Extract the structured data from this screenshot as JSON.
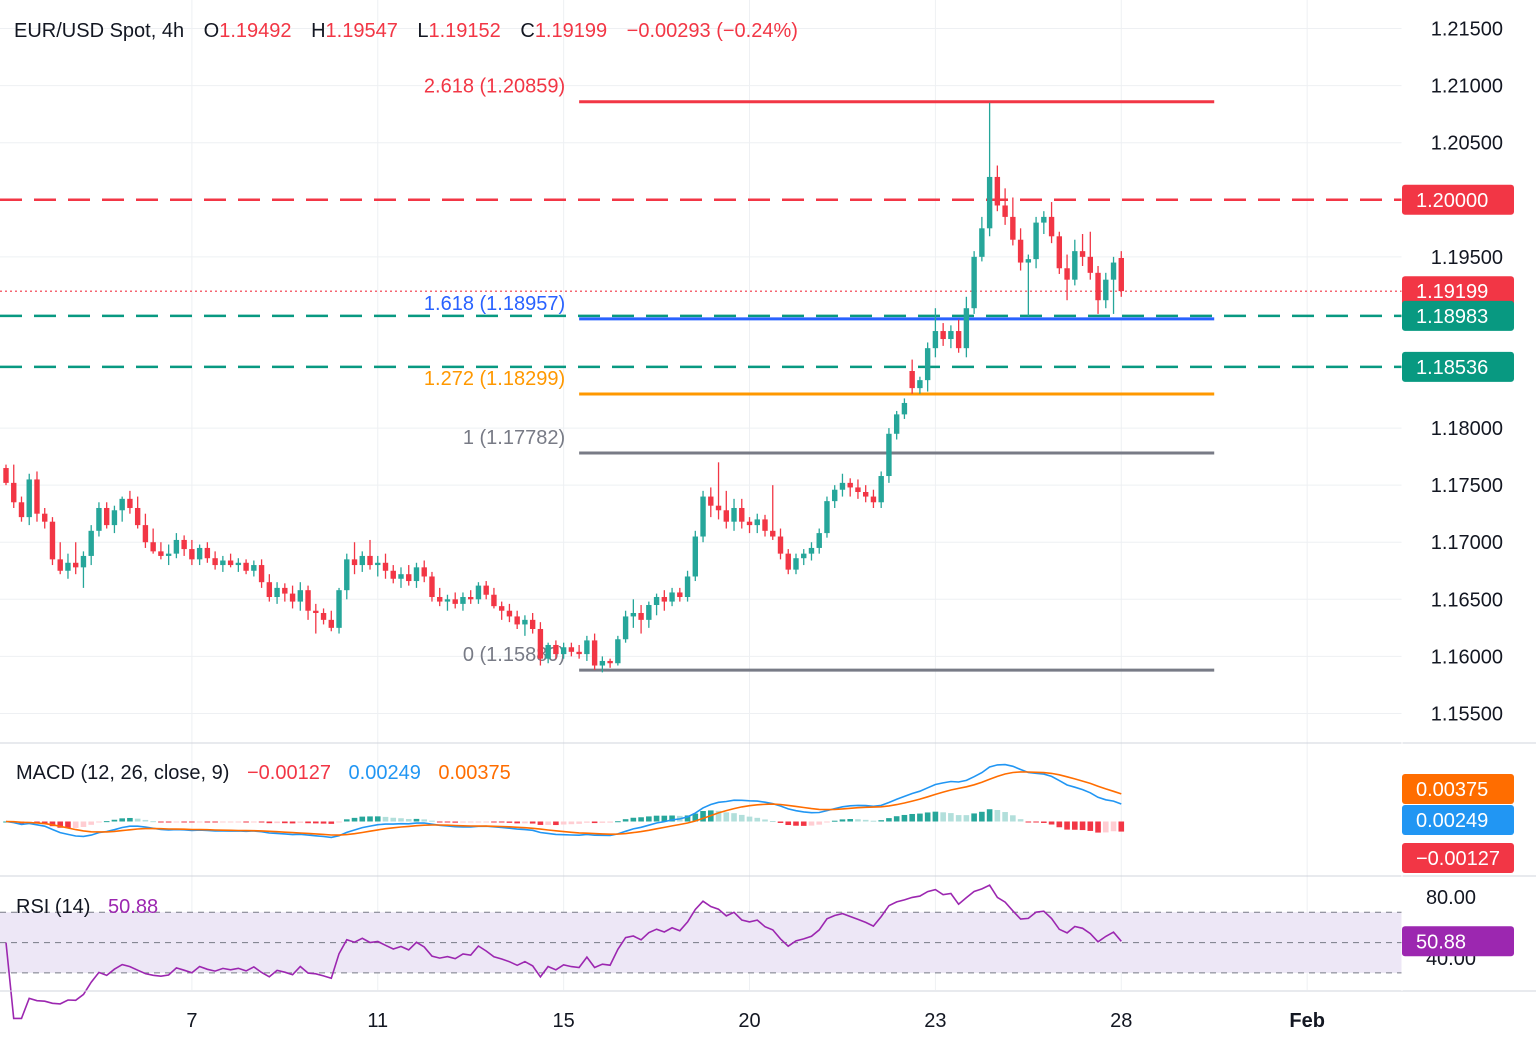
{
  "header": {
    "symbol": "EUR/USD Spot, 4h",
    "open_label": "O",
    "open": "1.19492",
    "high_label": "H",
    "high": "1.19547",
    "low_label": "L",
    "low": "1.19152",
    "close_label": "C",
    "close": "1.19199",
    "change": "−0.00293 (−0.24%)"
  },
  "colors": {
    "up": "#26a69a",
    "down": "#f23645",
    "fib_red": "#f23645",
    "fib_blue": "#2962ff",
    "fib_orange": "#ff9800",
    "fib_gray": "#787b86",
    "macd_line": "#2196f3",
    "signal_line": "#ff6d00",
    "rsi_line": "#9c27b0",
    "rsi_band": "#ede7f6",
    "grid": "#eef0f3",
    "axis_text": "#131722"
  },
  "chart_data": {
    "type": "candlestick",
    "x_tick_labels": [
      "7",
      "11",
      "15",
      "20",
      "23",
      "28",
      "Feb"
    ],
    "x_tick_index": [
      24,
      48,
      72,
      96,
      120,
      144,
      168
    ],
    "price_axis": {
      "ylim": [
        1.1525,
        1.2175
      ],
      "ticks": [
        "1.21500",
        "1.21000",
        "1.20500",
        "1.19500",
        "1.18000",
        "1.17500",
        "1.17000",
        "1.16500",
        "1.16000",
        "1.15500"
      ],
      "tick_values": [
        1.215,
        1.21,
        1.205,
        1.195,
        1.18,
        1.175,
        1.17,
        1.165,
        1.16,
        1.155
      ]
    },
    "price_tags": [
      {
        "label": "1.20000",
        "value": 1.2,
        "color": "#f23645"
      },
      {
        "label": "1.19199",
        "value": 1.19199,
        "color": "#f23645"
      },
      {
        "label": "1.18983",
        "value": 1.18983,
        "color": "#089981"
      },
      {
        "label": "1.18536",
        "value": 1.18536,
        "color": "#089981"
      }
    ],
    "horizontal_lines": [
      {
        "value": 1.2,
        "style": "dashed",
        "color": "#f23645"
      },
      {
        "value": 1.18983,
        "style": "dashed",
        "color": "#089981"
      },
      {
        "value": 1.18536,
        "style": "dashed",
        "color": "#089981"
      },
      {
        "value": 1.19199,
        "style": "dotted",
        "color": "#f23645"
      }
    ],
    "fib_levels": [
      {
        "label": "2.618 (1.20859)",
        "value": 1.20859,
        "color": "#f23645"
      },
      {
        "label": "1.618 (1.18957)",
        "value": 1.18957,
        "color": "#2962ff"
      },
      {
        "label": "1.272 (1.18299)",
        "value": 1.18299,
        "color": "#ff9800"
      },
      {
        "label": "1 (1.17782)",
        "value": 1.17782,
        "color": "#787b86"
      },
      {
        "label": "0 (1.15880)",
        "value": 1.1588,
        "color": "#787b86"
      }
    ],
    "fib_range_index": [
      74,
      156
    ],
    "candles": [
      [
        1.1765,
        1.1768,
        1.175,
        1.1752
      ],
      [
        1.1752,
        1.1768,
        1.173,
        1.1735
      ],
      [
        1.1735,
        1.174,
        1.1718,
        1.1722
      ],
      [
        1.1722,
        1.176,
        1.1715,
        1.1755
      ],
      [
        1.1755,
        1.1762,
        1.1718,
        1.1725
      ],
      [
        1.1725,
        1.173,
        1.1712,
        1.1718
      ],
      [
        1.1718,
        1.1722,
        1.168,
        1.1685
      ],
      [
        1.1685,
        1.17,
        1.1672,
        1.1675
      ],
      [
        1.1675,
        1.169,
        1.1668,
        1.1682
      ],
      [
        1.1682,
        1.17,
        1.1672,
        1.1678
      ],
      [
        1.1678,
        1.1692,
        1.166,
        1.1688
      ],
      [
        1.1688,
        1.1715,
        1.168,
        1.171
      ],
      [
        1.171,
        1.1735,
        1.1705,
        1.173
      ],
      [
        1.173,
        1.1735,
        1.1712,
        1.1715
      ],
      [
        1.1715,
        1.1732,
        1.1708,
        1.1728
      ],
      [
        1.1728,
        1.174,
        1.1718,
        1.1738
      ],
      [
        1.1738,
        1.1745,
        1.1725,
        1.173
      ],
      [
        1.173,
        1.174,
        1.1712,
        1.1715
      ],
      [
        1.1715,
        1.1725,
        1.1695,
        1.17
      ],
      [
        1.17,
        1.1712,
        1.169,
        1.1692
      ],
      [
        1.1692,
        1.17,
        1.1685,
        1.1688
      ],
      [
        1.1688,
        1.1698,
        1.168,
        1.169
      ],
      [
        1.169,
        1.1708,
        1.1686,
        1.1702
      ],
      [
        1.1702,
        1.1706,
        1.1688,
        1.1694
      ],
      [
        1.1694,
        1.1702,
        1.168,
        1.1685
      ],
      [
        1.1685,
        1.1698,
        1.168,
        1.1695
      ],
      [
        1.1695,
        1.17,
        1.1682,
        1.1686
      ],
      [
        1.1686,
        1.1692,
        1.1676,
        1.168
      ],
      [
        1.168,
        1.1688,
        1.1674,
        1.1684
      ],
      [
        1.1684,
        1.169,
        1.1678,
        1.168
      ],
      [
        1.168,
        1.1686,
        1.1674,
        1.1682
      ],
      [
        1.1682,
        1.1685,
        1.1672,
        1.1675
      ],
      [
        1.1675,
        1.1684,
        1.167,
        1.168
      ],
      [
        1.168,
        1.1685,
        1.166,
        1.1665
      ],
      [
        1.1665,
        1.1672,
        1.1648,
        1.1652
      ],
      [
        1.1652,
        1.1665,
        1.1646,
        1.166
      ],
      [
        1.166,
        1.1664,
        1.1648,
        1.1655
      ],
      [
        1.1655,
        1.1662,
        1.1642,
        1.1648
      ],
      [
        1.1648,
        1.1665,
        1.164,
        1.1658
      ],
      [
        1.1658,
        1.1662,
        1.1632,
        1.164
      ],
      [
        1.164,
        1.1646,
        1.162,
        1.1638
      ],
      [
        1.1638,
        1.1642,
        1.1628,
        1.1632
      ],
      [
        1.1632,
        1.164,
        1.1622,
        1.1625
      ],
      [
        1.1625,
        1.166,
        1.162,
        1.1658
      ],
      [
        1.1658,
        1.169,
        1.165,
        1.1685
      ],
      [
        1.1685,
        1.17,
        1.1672,
        1.168
      ],
      [
        1.168,
        1.1692,
        1.1674,
        1.1688
      ],
      [
        1.1688,
        1.1702,
        1.1676,
        1.168
      ],
      [
        1.168,
        1.1688,
        1.167,
        1.1682
      ],
      [
        1.1682,
        1.169,
        1.1668,
        1.1675
      ],
      [
        1.1675,
        1.168,
        1.1664,
        1.1668
      ],
      [
        1.1668,
        1.1678,
        1.166,
        1.1672
      ],
      [
        1.1672,
        1.168,
        1.1662,
        1.1666
      ],
      [
        1.1666,
        1.1682,
        1.166,
        1.1678
      ],
      [
        1.1678,
        1.1684,
        1.1665,
        1.167
      ],
      [
        1.167,
        1.1674,
        1.1648,
        1.1652
      ],
      [
        1.1652,
        1.166,
        1.1644,
        1.1648
      ],
      [
        1.1648,
        1.1654,
        1.164,
        1.165
      ],
      [
        1.165,
        1.1656,
        1.1642,
        1.1646
      ],
      [
        1.1646,
        1.1656,
        1.164,
        1.1652
      ],
      [
        1.1652,
        1.1658,
        1.1646,
        1.165
      ],
      [
        1.165,
        1.1665,
        1.1646,
        1.1662
      ],
      [
        1.1662,
        1.1666,
        1.165,
        1.1654
      ],
      [
        1.1654,
        1.166,
        1.1642,
        1.1644
      ],
      [
        1.1644,
        1.1648,
        1.1632,
        1.164
      ],
      [
        1.164,
        1.1646,
        1.163,
        1.1635
      ],
      [
        1.1635,
        1.164,
        1.1624,
        1.1628
      ],
      [
        1.1628,
        1.1636,
        1.1618,
        1.1632
      ],
      [
        1.1632,
        1.1638,
        1.162,
        1.1624
      ],
      [
        1.1624,
        1.163,
        1.1592,
        1.1598
      ],
      [
        1.1598,
        1.1612,
        1.1594,
        1.161
      ],
      [
        1.161,
        1.1614,
        1.1598,
        1.1602
      ],
      [
        1.1602,
        1.1612,
        1.1598,
        1.1608
      ],
      [
        1.1608,
        1.1612,
        1.16,
        1.1604
      ],
      [
        1.1604,
        1.161,
        1.1598,
        1.1602
      ],
      [
        1.1602,
        1.1618,
        1.1596,
        1.1614
      ],
      [
        1.1614,
        1.162,
        1.1588,
        1.1592
      ],
      [
        1.1592,
        1.16,
        1.1586,
        1.1596
      ],
      [
        1.1596,
        1.1598,
        1.159,
        1.1594
      ],
      [
        1.1594,
        1.1618,
        1.1592,
        1.1615
      ],
      [
        1.1615,
        1.164,
        1.1612,
        1.1635
      ],
      [
        1.1635,
        1.165,
        1.1625,
        1.1638
      ],
      [
        1.1638,
        1.1645,
        1.162,
        1.1632
      ],
      [
        1.1632,
        1.1648,
        1.1625,
        1.1645
      ],
      [
        1.1645,
        1.1655,
        1.1636,
        1.1652
      ],
      [
        1.1652,
        1.1658,
        1.164,
        1.1648
      ],
      [
        1.1648,
        1.166,
        1.1644,
        1.1656
      ],
      [
        1.1656,
        1.166,
        1.1648,
        1.1652
      ],
      [
        1.1652,
        1.1675,
        1.1648,
        1.167
      ],
      [
        1.167,
        1.171,
        1.1666,
        1.1705
      ],
      [
        1.1705,
        1.1745,
        1.17,
        1.174
      ],
      [
        1.174,
        1.1748,
        1.1722,
        1.1732
      ],
      [
        1.1732,
        1.177,
        1.172,
        1.1728
      ],
      [
        1.1728,
        1.1745,
        1.1712,
        1.1718
      ],
      [
        1.1718,
        1.1738,
        1.171,
        1.173
      ],
      [
        1.173,
        1.1738,
        1.1712,
        1.1718
      ],
      [
        1.1718,
        1.1722,
        1.1708,
        1.1715
      ],
      [
        1.1715,
        1.1725,
        1.1708,
        1.172
      ],
      [
        1.172,
        1.1724,
        1.1705,
        1.171
      ],
      [
        1.171,
        1.175,
        1.1702,
        1.1705
      ],
      [
        1.1705,
        1.1712,
        1.1685,
        1.169
      ],
      [
        1.169,
        1.1694,
        1.1672,
        1.1676
      ],
      [
        1.1676,
        1.169,
        1.1672,
        1.1686
      ],
      [
        1.1686,
        1.1694,
        1.168,
        1.169
      ],
      [
        1.169,
        1.17,
        1.1684,
        1.1695
      ],
      [
        1.1695,
        1.1712,
        1.169,
        1.1708
      ],
      [
        1.1708,
        1.174,
        1.1704,
        1.1736
      ],
      [
        1.1736,
        1.175,
        1.173,
        1.1746
      ],
      [
        1.1746,
        1.176,
        1.174,
        1.1752
      ],
      [
        1.1752,
        1.1756,
        1.174,
        1.1748
      ],
      [
        1.1748,
        1.1755,
        1.1738,
        1.1744
      ],
      [
        1.1744,
        1.175,
        1.1735,
        1.174
      ],
      [
        1.174,
        1.1746,
        1.173,
        1.1735
      ],
      [
        1.1735,
        1.1762,
        1.173,
        1.1758
      ],
      [
        1.1758,
        1.18,
        1.1752,
        1.1795
      ],
      [
        1.1795,
        1.1815,
        1.179,
        1.1812
      ],
      [
        1.1812,
        1.1826,
        1.1808,
        1.1822
      ],
      [
        1.185,
        1.186,
        1.183,
        1.1835
      ],
      [
        1.1835,
        1.1845,
        1.183,
        1.1842
      ],
      [
        1.1842,
        1.1875,
        1.1832,
        1.187
      ],
      [
        1.187,
        1.1905,
        1.1862,
        1.1885
      ],
      [
        1.1885,
        1.1892,
        1.1872,
        1.1878
      ],
      [
        1.1878,
        1.189,
        1.187,
        1.1885
      ],
      [
        1.1885,
        1.1895,
        1.1866,
        1.187
      ],
      [
        1.187,
        1.1915,
        1.1862,
        1.1905
      ],
      [
        1.1905,
        1.1955,
        1.19,
        1.195
      ],
      [
        1.195,
        1.1985,
        1.1946,
        1.1975
      ],
      [
        1.1975,
        1.2085,
        1.1968,
        1.202
      ],
      [
        1.202,
        1.203,
        1.199,
        1.1995
      ],
      [
        1.1995,
        1.201,
        1.1978,
        1.1985
      ],
      [
        1.1985,
        1.2002,
        1.196,
        1.1965
      ],
      [
        1.1965,
        1.1975,
        1.1938,
        1.1945
      ],
      [
        1.1945,
        1.1952,
        1.1898,
        1.1948
      ],
      [
        1.1948,
        1.1985,
        1.194,
        1.198
      ],
      [
        1.198,
        1.199,
        1.197,
        1.1985
      ],
      [
        1.1985,
        1.1998,
        1.1962,
        1.1968
      ],
      [
        1.1968,
        1.1972,
        1.1935,
        1.194
      ],
      [
        1.194,
        1.1952,
        1.1912,
        1.193
      ],
      [
        1.193,
        1.1965,
        1.1925,
        1.1955
      ],
      [
        1.1955,
        1.197,
        1.1942,
        1.195
      ],
      [
        1.195,
        1.1972,
        1.193,
        1.1936
      ],
      [
        1.1936,
        1.1942,
        1.19,
        1.1912
      ],
      [
        1.1912,
        1.1936,
        1.1905,
        1.193
      ],
      [
        1.193,
        1.195,
        1.19,
        1.1945
      ],
      [
        1.1949,
        1.1955,
        1.1915,
        1.192
      ]
    ],
    "candle_index_offset": 0,
    "candle_step_per_bar": 1,
    "macd": {
      "label": "MACD (12, 26, close, 9)",
      "hist_value": "−0.00127",
      "macd_value": "0.00249",
      "signal_value": "0.00375",
      "tags": [
        {
          "label": "0.00375",
          "value": 0.00375,
          "color": "#ff6d00"
        },
        {
          "label": "0.00249",
          "value": 0.00249,
          "color": "#2196f3"
        },
        {
          "label": "−0.00127",
          "value": -0.00127,
          "color": "#f23645"
        }
      ]
    },
    "rsi": {
      "label": "RSI (14)",
      "value": "50.88",
      "value_num": 50.88,
      "ticks": [
        "80.00",
        "40.00"
      ],
      "tick_values": [
        80,
        40
      ],
      "band": [
        30,
        70
      ],
      "midline": 50
    }
  }
}
